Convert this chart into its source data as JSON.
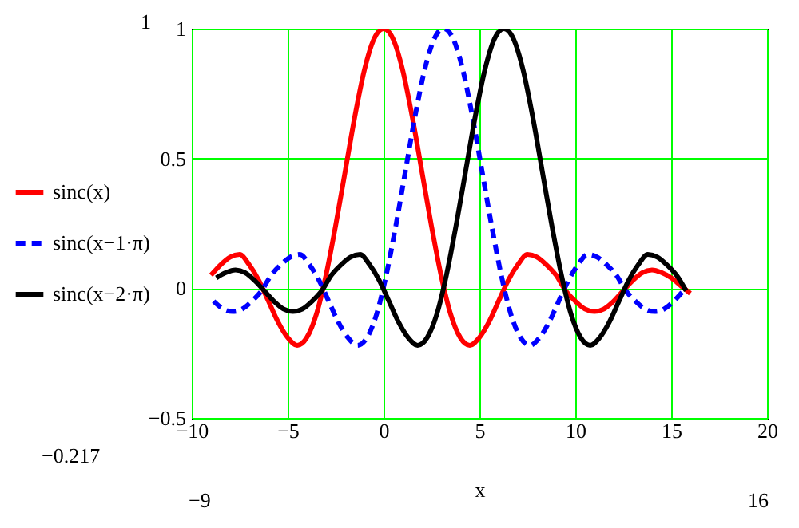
{
  "chart_data": {
    "type": "line",
    "xlabel": "x",
    "xlim": [
      -10,
      20
    ],
    "xticks": [
      -10,
      -5,
      0,
      5,
      10,
      15,
      20
    ],
    "ylim": [
      -0.5,
      1
    ],
    "yticks": [
      -0.5,
      0,
      0.5,
      1
    ],
    "grid": true,
    "legend": "left",
    "marker": "none",
    "annotations": [
      "1",
      "−0.217",
      "−9",
      "16"
    ],
    "series": [
      {
        "name": "sinc(x)",
        "color": "#ff0000",
        "line_style": "solid",
        "x": [
          -9,
          -8.5,
          -8,
          -7.5,
          -7,
          -6.5,
          -6,
          -5.5,
          -5,
          -4.5,
          -4,
          -3.5,
          -3,
          -2.5,
          -2,
          -1.5,
          -1,
          -0.5,
          0,
          0.5,
          1,
          1.5,
          2,
          2.5,
          3,
          3.5,
          4,
          4.5,
          5,
          5.5,
          6,
          6.5,
          7,
          7.5,
          8,
          8.5,
          9,
          9.5,
          10,
          10.5,
          11,
          11.5,
          12,
          12.5,
          13,
          13.5,
          14,
          14.5,
          15,
          15.5,
          16
        ],
        "values": [
          0.05,
          0.09,
          0.12,
          0.13,
          0.09,
          0.03,
          -0.05,
          -0.13,
          -0.19,
          -0.22,
          -0.19,
          -0.1,
          0.05,
          0.24,
          0.45,
          0.66,
          0.84,
          0.96,
          1,
          0.96,
          0.84,
          0.66,
          0.45,
          0.24,
          0.05,
          -0.1,
          -0.19,
          -0.22,
          -0.19,
          -0.13,
          -0.05,
          0.03,
          0.09,
          0.13,
          0.12,
          0.09,
          0.05,
          -0.01,
          -0.05,
          -0.08,
          -0.09,
          -0.08,
          -0.05,
          -0.01,
          0.03,
          0.06,
          0.07,
          0.06,
          0.04,
          0.01,
          -0.02
        ]
      },
      {
        "name": "sinc(x−1·π)",
        "color": "#0000ff",
        "line_style": "dashed",
        "x": [
          -8.86,
          -8.36,
          -7.86,
          -7.36,
          -6.86,
          -6.36,
          -5.86,
          -5.36,
          -4.86,
          -4.36,
          -3.86,
          -3.36,
          -2.86,
          -2.36,
          -1.86,
          -1.36,
          -0.86,
          -0.36,
          0.14,
          0.64,
          1.14,
          1.64,
          2.14,
          2.64,
          3.14,
          3.64,
          4.14,
          4.64,
          5.14,
          5.64,
          6.14,
          6.64,
          7.14,
          7.64,
          8.14,
          8.64,
          9.14,
          9.64,
          10.14,
          10.64,
          11.14,
          11.64,
          12.14,
          12.64,
          13.14,
          13.64,
          14.14,
          14.64,
          15.14,
          15.64
        ],
        "values": [
          -0.05,
          -0.08,
          -0.09,
          -0.08,
          -0.05,
          -0.01,
          0.05,
          0.09,
          0.12,
          0.13,
          0.09,
          0.03,
          -0.05,
          -0.13,
          -0.19,
          -0.22,
          -0.19,
          -0.1,
          0.05,
          0.24,
          0.45,
          0.66,
          0.84,
          0.96,
          1,
          0.96,
          0.84,
          0.66,
          0.45,
          0.24,
          0.05,
          -0.1,
          -0.19,
          -0.22,
          -0.19,
          -0.13,
          -0.05,
          0.03,
          0.09,
          0.13,
          0.12,
          0.09,
          0.05,
          -0.01,
          -0.05,
          -0.08,
          -0.09,
          -0.08,
          -0.05,
          -0.01
        ]
      },
      {
        "name": "sinc(x−2·π)",
        "color": "#000000",
        "line_style": "solid",
        "x": [
          -8.72,
          -8.22,
          -7.72,
          -7.22,
          -6.72,
          -6.22,
          -5.72,
          -5.22,
          -4.72,
          -4.22,
          -3.72,
          -3.22,
          -2.72,
          -2.22,
          -1.72,
          -1.22,
          -0.72,
          -0.22,
          0.28,
          0.78,
          1.28,
          1.78,
          2.28,
          2.78,
          3.28,
          3.78,
          4.28,
          4.78,
          5.28,
          5.78,
          6.28,
          6.78,
          7.28,
          7.78,
          8.28,
          8.78,
          9.28,
          9.78,
          10.28,
          10.78,
          11.28,
          11.78,
          12.28,
          12.78,
          13.28,
          13.78,
          14.28,
          14.78,
          15.28,
          15.78
        ],
        "values": [
          0.04,
          0.06,
          0.07,
          0.06,
          0.03,
          -0.01,
          -0.05,
          -0.08,
          -0.09,
          -0.08,
          -0.05,
          -0.01,
          0.05,
          0.09,
          0.12,
          0.13,
          0.09,
          0.03,
          -0.05,
          -0.13,
          -0.19,
          -0.22,
          -0.19,
          -0.1,
          0.05,
          0.24,
          0.45,
          0.66,
          0.84,
          0.96,
          1,
          0.96,
          0.84,
          0.66,
          0.45,
          0.24,
          0.05,
          -0.1,
          -0.19,
          -0.22,
          -0.19,
          -0.13,
          -0.05,
          0.03,
          0.09,
          0.13,
          0.12,
          0.09,
          0.05,
          -0.01
        ]
      }
    ]
  }
}
